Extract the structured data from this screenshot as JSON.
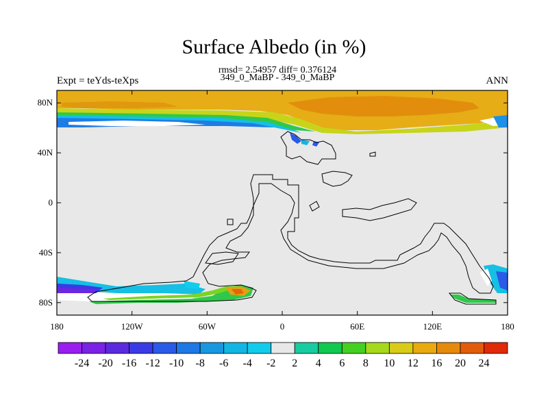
{
  "header": {
    "title": "Surface Albedo (in %)",
    "stats_line1": "rmsd= 2.54957 diff= 0.376124",
    "stats_line2": "349_0_MaBP - 349_0_MaBP",
    "left_label": "Expt = teYds-teXps",
    "right_label": "ANN"
  },
  "chart_data": {
    "type": "heatmap",
    "projection": "cylindrical-equidistant",
    "xlim": [
      -180,
      180
    ],
    "ylim": [
      -90,
      90
    ],
    "x_ticks": [
      {
        "value": -180,
        "label": "180"
      },
      {
        "value": -120,
        "label": "120W"
      },
      {
        "value": -60,
        "label": "60W"
      },
      {
        "value": 0,
        "label": "0"
      },
      {
        "value": 60,
        "label": "60E"
      },
      {
        "value": 120,
        "label": "120E"
      },
      {
        "value": 180,
        "label": "180"
      }
    ],
    "y_ticks": [
      {
        "value": 80,
        "label": "80N"
      },
      {
        "value": 40,
        "label": "40N"
      },
      {
        "value": 0,
        "label": "0"
      },
      {
        "value": -40,
        "label": "40S"
      },
      {
        "value": -80,
        "label": "80S"
      }
    ],
    "colorbar": {
      "labels": [
        "-24",
        "-20",
        "-16",
        "-12",
        "-10",
        "-8",
        "-6",
        "-4",
        "-2",
        "2",
        "4",
        "6",
        "8",
        "10",
        "12",
        "16",
        "20",
        "24"
      ],
      "colors": [
        "#9a1ef0",
        "#7a22e6",
        "#5a2ae0",
        "#3a3ae6",
        "#2a5ae8",
        "#1e78e6",
        "#1898e0",
        "#12b6e2",
        "#12ccec",
        "#e8e8e8",
        "#16cca0",
        "#12c850",
        "#44d020",
        "#a6d81c",
        "#d8cc18",
        "#e8aa10",
        "#e68a0c",
        "#e25c0c",
        "#e02a08"
      ]
    },
    "fields": [
      {
        "lat": [
          68,
          90
        ],
        "value": 11
      },
      {
        "lat": [
          62,
          66
        ],
        "value": -6
      },
      {
        "lat": [
          -80,
          -72
        ],
        "value": 6
      }
    ]
  }
}
